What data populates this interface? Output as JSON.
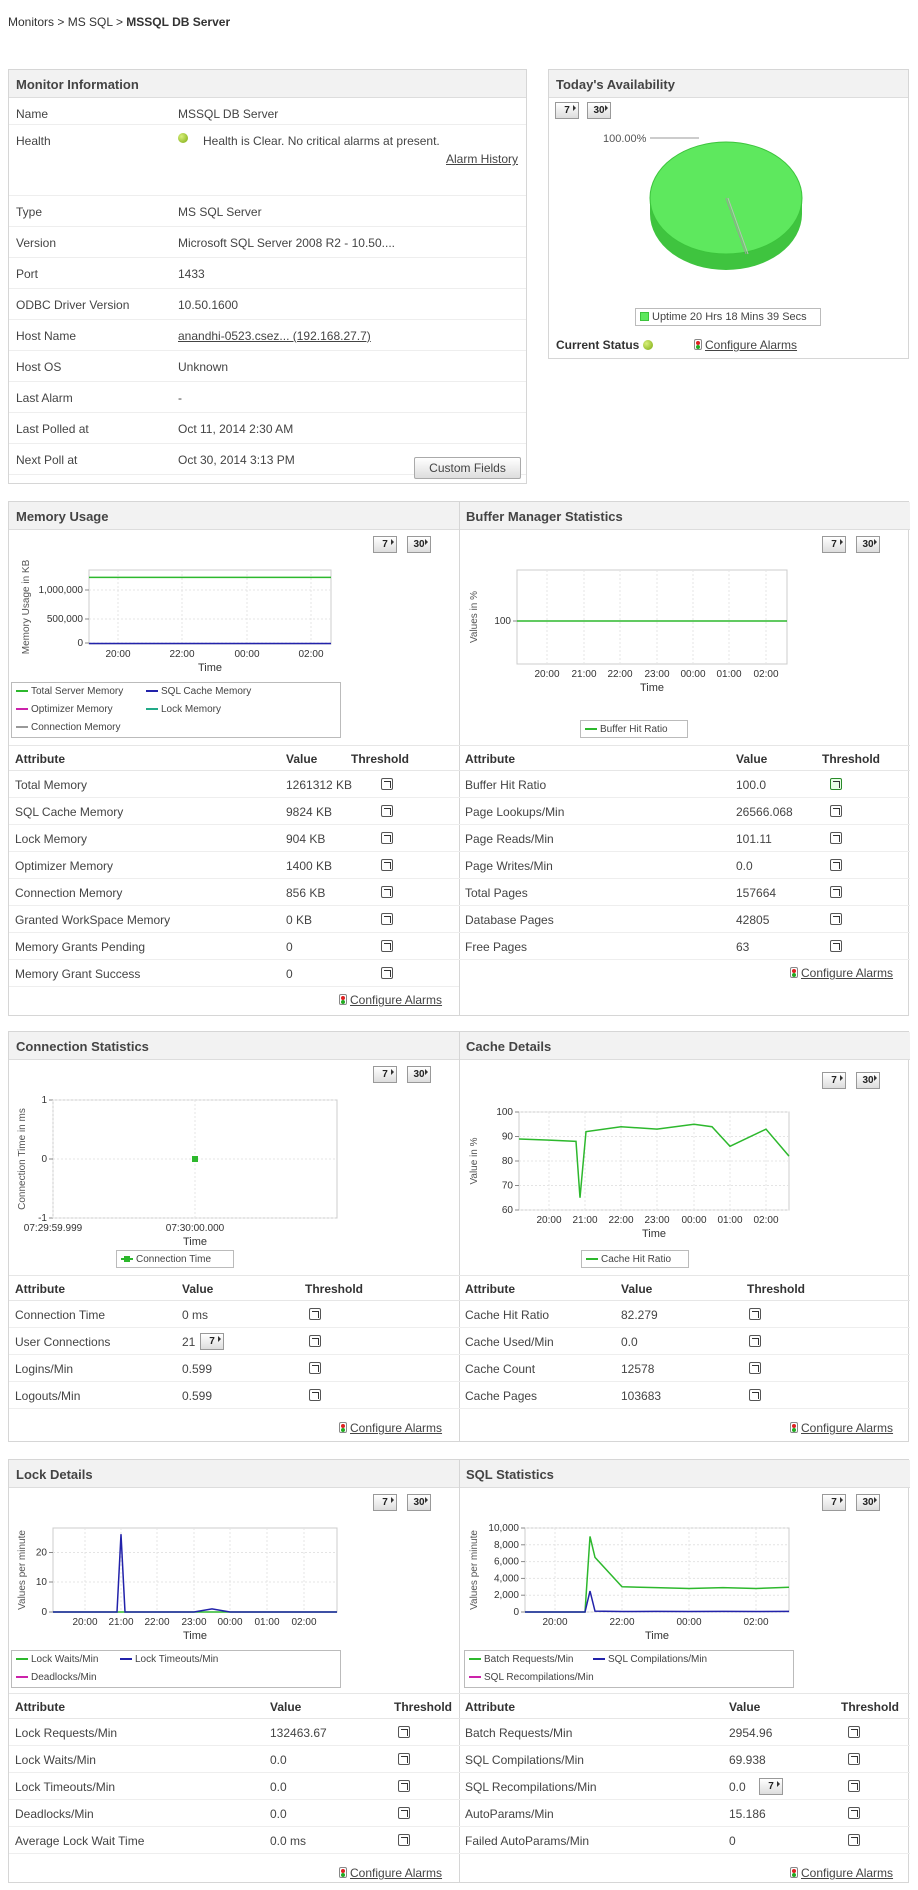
{
  "breadcrumb": {
    "monitors": "Monitors",
    "sep1": " > ",
    "mssql": "MS SQL",
    "sep2": " > ",
    "current": "MSSQL DB Server"
  },
  "monitor_info": {
    "title": "Monitor Information",
    "rows": [
      {
        "k": "Name",
        "v": "MSSQL DB Server"
      },
      {
        "k": "Health",
        "v": "Health is Clear. No critical alarms at present."
      },
      {
        "k": "Type",
        "v": "MS SQL Server"
      },
      {
        "k": "Version",
        "v": "Microsoft SQL Server 2008 R2 - 10.50...."
      },
      {
        "k": "Port",
        "v": "1433"
      },
      {
        "k": "ODBC Driver Version",
        "v": "10.50.1600"
      },
      {
        "k": "Host Name",
        "v": "anandhi-0523.csez... (192.168.27.7)"
      },
      {
        "k": "Host OS",
        "v": "Unknown"
      },
      {
        "k": "Last Alarm",
        "v": "-"
      },
      {
        "k": "Last Polled at",
        "v": "Oct 11, 2014 2:30 AM"
      },
      {
        "k": "Next Poll at",
        "v": "Oct 30, 2014 3:13 PM"
      }
    ],
    "alarm_history": "Alarm History",
    "custom_fields": "Custom Fields"
  },
  "availability": {
    "title": "Today's Availability",
    "btn7": "7",
    "btn30": "30",
    "pie_label": "100.00%",
    "uptime_percent": 100,
    "legend": "Uptime 20 Hrs 18 Mins 39 Secs",
    "current_status": "Current Status",
    "configure": "Configure Alarms"
  },
  "common": {
    "btn7": "7",
    "btn30": "30",
    "attribute": "Attribute",
    "value": "Value",
    "threshold": "Threshold",
    "configure": "Configure Alarms",
    "time": "Time"
  },
  "memory": {
    "title": "Memory Usage",
    "ylabel": "Memory Usage in KB",
    "yticks": [
      "1,000,000",
      "500,000",
      "0"
    ],
    "xticks": [
      "20:00",
      "22:00",
      "00:00",
      "02:00"
    ],
    "legend": [
      "Total Server Memory",
      "SQL Cache Memory",
      "Optimizer Memory",
      "Lock Memory",
      "Connection Memory"
    ],
    "rows": [
      {
        "a": "Total Memory",
        "v": "1261312 KB"
      },
      {
        "a": "SQL Cache Memory",
        "v": "9824 KB"
      },
      {
        "a": "Lock Memory",
        "v": "904 KB"
      },
      {
        "a": "Optimizer Memory",
        "v": "1400 KB"
      },
      {
        "a": "Connection Memory",
        "v": "856 KB"
      },
      {
        "a": "Granted WorkSpace Memory",
        "v": "0 KB"
      },
      {
        "a": "Memory Grants Pending",
        "v": "0"
      },
      {
        "a": "Memory Grant Success",
        "v": "0"
      }
    ]
  },
  "buffer": {
    "title": "Buffer Manager Statistics",
    "ylabel": "Values in %",
    "yticks": [
      "100"
    ],
    "xticks": [
      "20:00",
      "21:00",
      "22:00",
      "23:00",
      "00:00",
      "01:00",
      "02:00"
    ],
    "legend": [
      "Buffer Hit Ratio"
    ],
    "rows": [
      {
        "a": "Buffer Hit Ratio",
        "v": "100.0"
      },
      {
        "a": "Page Lookups/Min",
        "v": "26566.068"
      },
      {
        "a": "Page Reads/Min",
        "v": "101.11"
      },
      {
        "a": "Page Writes/Min",
        "v": "0.0"
      },
      {
        "a": "Total Pages",
        "v": "157664"
      },
      {
        "a": "Database Pages",
        "v": "42805"
      },
      {
        "a": "Free Pages",
        "v": "63"
      }
    ]
  },
  "connection": {
    "title": "Connection Statistics",
    "ylabel": "Connection Time in ms",
    "yticks": [
      "1",
      "0",
      "-1"
    ],
    "xticks": [
      "07:29:59.999",
      "07:30:00.000"
    ],
    "legend": [
      "Connection Time"
    ],
    "rows": [
      {
        "a": "Connection Time",
        "v": "0   ms"
      },
      {
        "a": "User Connections",
        "v": "21"
      },
      {
        "a": "Logins/Min",
        "v": "0.599"
      },
      {
        "a": "Logouts/Min",
        "v": "0.599"
      }
    ]
  },
  "cache": {
    "title": "Cache Details",
    "ylabel": "Value in %",
    "yticks": [
      "100",
      "90",
      "80",
      "70",
      "60"
    ],
    "xticks": [
      "20:00",
      "21:00",
      "22:00",
      "23:00",
      "00:00",
      "01:00",
      "02:00"
    ],
    "legend": [
      "Cache Hit Ratio"
    ],
    "rows": [
      {
        "a": "Cache Hit Ratio",
        "v": "82.279"
      },
      {
        "a": "Cache Used/Min",
        "v": "0.0"
      },
      {
        "a": "Cache Count",
        "v": "12578"
      },
      {
        "a": "Cache Pages",
        "v": "103683"
      }
    ]
  },
  "lock": {
    "title": "Lock Details",
    "ylabel": "Values per minute",
    "yticks": [
      "20",
      "10",
      "0"
    ],
    "xticks": [
      "20:00",
      "21:00",
      "22:00",
      "23:00",
      "00:00",
      "01:00",
      "02:00"
    ],
    "legend": [
      "Lock Waits/Min",
      "Lock Timeouts/Min",
      "Deadlocks/Min"
    ],
    "rows": [
      {
        "a": "Lock Requests/Min",
        "v": "132463.67"
      },
      {
        "a": "Lock Waits/Min",
        "v": "0.0"
      },
      {
        "a": "Lock Timeouts/Min",
        "v": "0.0"
      },
      {
        "a": "Deadlocks/Min",
        "v": "0.0"
      },
      {
        "a": "Average Lock Wait Time",
        "v": "0.0 ms"
      }
    ]
  },
  "sql": {
    "title": "SQL Statistics",
    "ylabel": "Values per minute",
    "yticks": [
      "10,000",
      "8,000",
      "6,000",
      "4,000",
      "2,000",
      "0"
    ],
    "xticks": [
      "20:00",
      "22:00",
      "00:00",
      "02:00"
    ],
    "legend": [
      "Batch Requests/Min",
      "SQL Compilations/Min",
      "SQL Recompilations/Min"
    ],
    "rows": [
      {
        "a": "Batch Requests/Min",
        "v": "2954.96"
      },
      {
        "a": "SQL Compilations/Min",
        "v": "69.938"
      },
      {
        "a": "SQL Recompilations/Min",
        "v": "0.0"
      },
      {
        "a": "AutoParams/Min",
        "v": "15.186"
      },
      {
        "a": "Failed AutoParams/Min",
        "v": "0"
      }
    ]
  },
  "colors": {
    "green": "#2db82d",
    "blue": "#2222aa",
    "magenta": "#cc22aa",
    "teal": "#22aa88",
    "gray": "#999999",
    "pie": "#5ee85e"
  },
  "chart_data": [
    {
      "type": "pie",
      "title": "Today's Availability",
      "categories": [
        "Uptime"
      ],
      "values": [
        100.0
      ]
    },
    {
      "type": "line",
      "title": "Memory Usage",
      "ylabel": "Memory Usage in KB",
      "xlabel": "Time",
      "x": [
        "19:00",
        "20:00",
        "21:00",
        "22:00",
        "23:00",
        "00:00",
        "01:00",
        "02:00",
        "02:30"
      ],
      "series": [
        {
          "name": "Total Server Memory",
          "values": [
            1261312,
            1261312,
            1261312,
            1261312,
            1261312,
            1261312,
            1261312,
            1261312,
            1261312
          ]
        },
        {
          "name": "SQL Cache Memory",
          "values": [
            9824,
            9824,
            9824,
            9824,
            9824,
            9824,
            9824,
            9824,
            9824
          ]
        }
      ],
      "ylim": [
        0,
        1400000
      ]
    },
    {
      "type": "line",
      "title": "Buffer Manager Statistics",
      "ylabel": "Values in %",
      "xlabel": "Time",
      "x": [
        "19:00",
        "02:30"
      ],
      "series": [
        {
          "name": "Buffer Hit Ratio",
          "values": [
            100,
            100
          ]
        }
      ]
    },
    {
      "type": "scatter",
      "title": "Connection Statistics",
      "ylabel": "Connection Time in ms",
      "xlabel": "Time",
      "x": [
        "07:30:00.000"
      ],
      "series": [
        {
          "name": "Connection Time",
          "values": [
            0
          ]
        }
      ],
      "ylim": [
        -1,
        1
      ]
    },
    {
      "type": "line",
      "title": "Cache Details",
      "ylabel": "Value in %",
      "xlabel": "Time",
      "x": [
        "19:00",
        "20:00",
        "20:45",
        "21:00",
        "21:15",
        "22:00",
        "23:00",
        "00:00",
        "00:30",
        "01:00",
        "02:00",
        "02:30"
      ],
      "series": [
        {
          "name": "Cache Hit Ratio",
          "values": [
            89,
            88.5,
            88,
            65,
            92,
            94,
            93,
            95,
            94,
            86,
            93,
            82
          ]
        }
      ],
      "ylim": [
        60,
        100
      ]
    },
    {
      "type": "line",
      "title": "Lock Details",
      "ylabel": "Values per minute",
      "xlabel": "Time",
      "x": [
        "19:00",
        "20:00",
        "20:55",
        "21:00",
        "21:05",
        "22:00",
        "23:00",
        "23:30",
        "00:00",
        "01:00",
        "02:00",
        "02:30"
      ],
      "series": [
        {
          "name": "Lock Waits/Min",
          "values": [
            0,
            0,
            0,
            0,
            0,
            0,
            0,
            0,
            0,
            0,
            0,
            0
          ]
        },
        {
          "name": "Lock Timeouts/Min",
          "values": [
            0,
            0,
            0,
            25,
            0,
            0,
            0,
            1,
            0,
            0,
            0,
            0
          ]
        }
      ],
      "ylim": [
        0,
        27
      ]
    },
    {
      "type": "line",
      "title": "SQL Statistics",
      "ylabel": "Values per minute",
      "xlabel": "Time",
      "x": [
        "19:00",
        "20:30",
        "20:50",
        "21:00",
        "21:10",
        "22:00",
        "23:00",
        "00:00",
        "01:00",
        "02:00",
        "02:30"
      ],
      "series": [
        {
          "name": "Batch Requests/Min",
          "values": [
            0,
            0,
            0,
            9000,
            6500,
            3000,
            2900,
            2800,
            2900,
            2800,
            2950
          ]
        },
        {
          "name": "SQL Compilations/Min",
          "values": [
            0,
            0,
            0,
            2500,
            100,
            60,
            70,
            60,
            70,
            60,
            70
          ]
        }
      ],
      "ylim": [
        0,
        10000
      ]
    }
  ]
}
